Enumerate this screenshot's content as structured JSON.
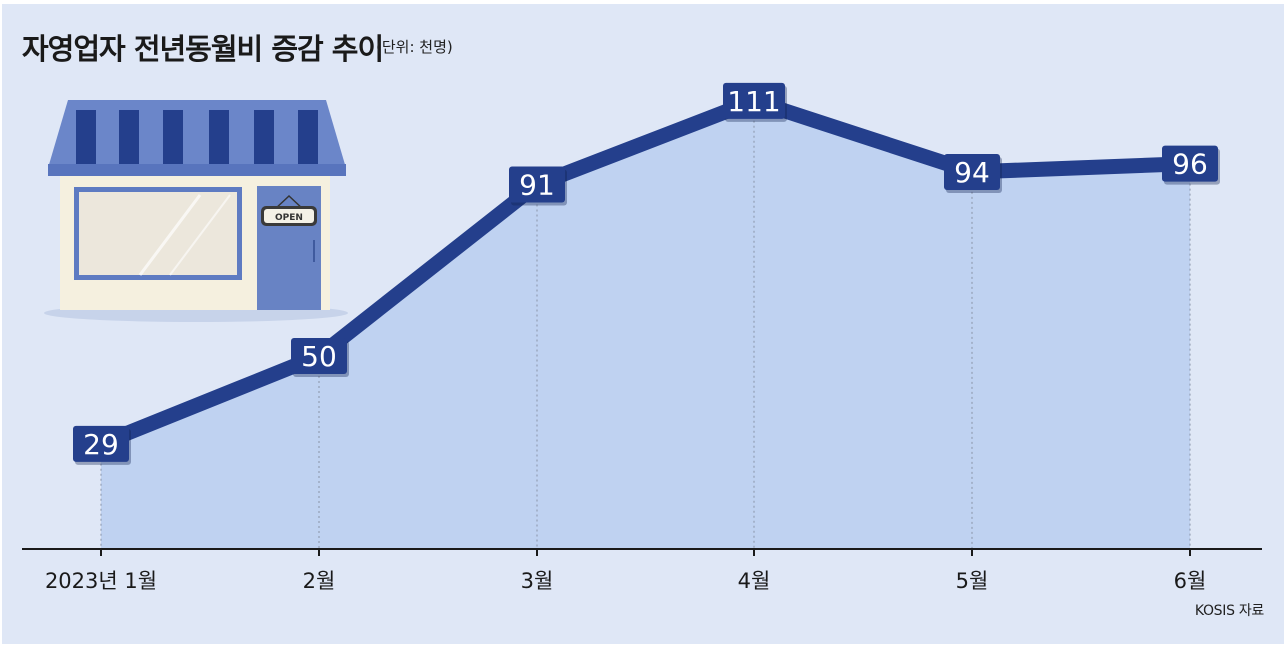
{
  "title": "자영업자 전년동월비 증감 추이",
  "unit": "(단위: 천명)",
  "source": "KOSIS 자료",
  "shop_sign": "OPEN",
  "colors": {
    "line": "#243f8c",
    "area": "#bfd2f1",
    "background": "#dfe7f6",
    "label_box": "#243f8c"
  },
  "chart_data": {
    "type": "area",
    "categories": [
      "2023년 1월",
      "2월",
      "3월",
      "4월",
      "5월",
      "6월"
    ],
    "values": [
      29,
      50,
      91,
      111,
      94,
      96
    ],
    "data_labels": [
      "29",
      "50",
      "91",
      "111",
      "94",
      "96"
    ],
    "unit": "천명",
    "grid": false,
    "legend": "none"
  }
}
